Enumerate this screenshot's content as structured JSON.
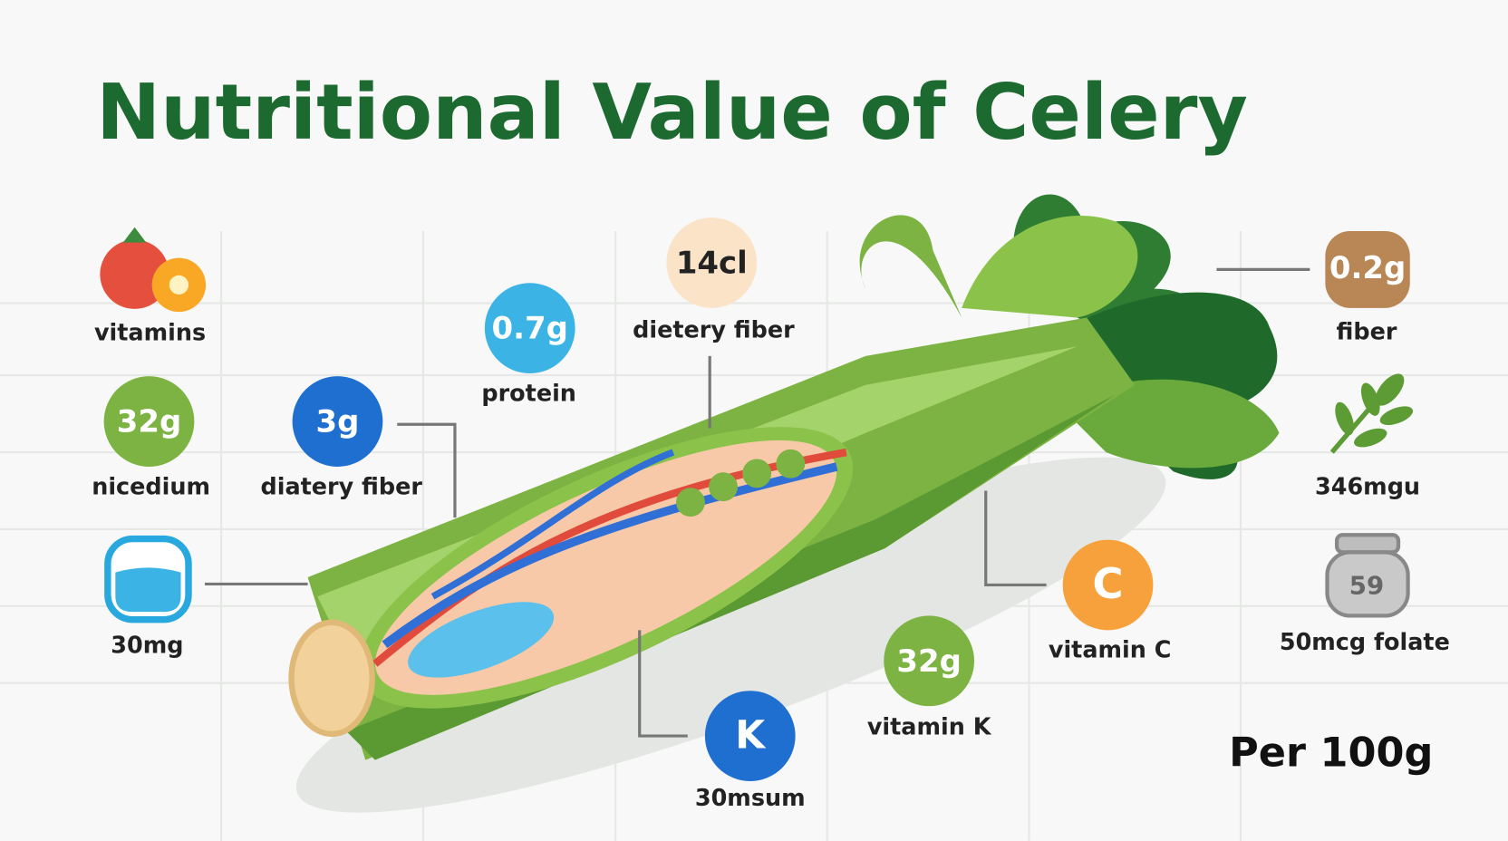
{
  "header": {
    "title": "Nutritional Value of Celery"
  },
  "items": [
    {
      "label": "vitamins"
    },
    {
      "badge": "32g",
      "label": "nicedium"
    },
    {
      "label": "30mg"
    },
    {
      "badge": "3g",
      "label": "diatery fiber"
    },
    {
      "badge": "0.7g",
      "label": "protein"
    },
    {
      "badge": "14cl",
      "label": "dietery fiber"
    },
    {
      "badge": "K",
      "label": "30msum"
    },
    {
      "badge": "32g",
      "label": "vitamin K"
    },
    {
      "badge": "C",
      "label": "vitamin C"
    },
    {
      "badge": "0.2g",
      "label": "fiber"
    },
    {
      "label": "346mgu"
    },
    {
      "badge": "59",
      "label": "50mcg folate"
    }
  ],
  "footer": {
    "note": "Per 100g"
  }
}
